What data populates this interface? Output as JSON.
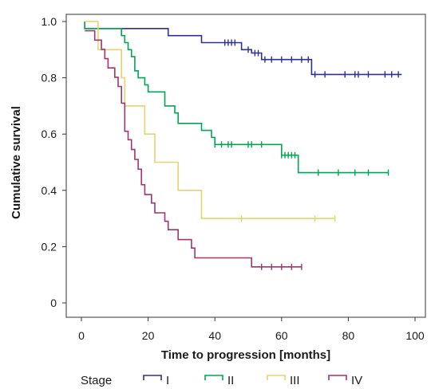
{
  "chart_data": {
    "type": "line",
    "subtype": "kaplan-meier-step",
    "xlabel": "Time to progression [months]",
    "ylabel": "Cumulative survival",
    "xlim": [
      0,
      100
    ],
    "ylim": [
      0,
      1.0
    ],
    "x_ticks": [
      {
        "value": 0,
        "label": "0"
      },
      {
        "value": 20,
        "label": "20"
      },
      {
        "value": 40,
        "label": "40"
      },
      {
        "value": 60,
        "label": "60"
      },
      {
        "value": 80,
        "label": "80"
      },
      {
        "value": 100,
        "label": "100"
      }
    ],
    "y_ticks": [
      {
        "value": 0,
        "label": "0"
      },
      {
        "value": 0.2,
        "label": "0.2"
      },
      {
        "value": 0.4,
        "label": "0.4"
      },
      {
        "value": 0.6,
        "label": "0.6"
      },
      {
        "value": 0.8,
        "label": "0.8"
      },
      {
        "value": 1.0,
        "label": "1.0"
      }
    ],
    "grid": false,
    "legend_title": "Stage",
    "legend_position": "bottom",
    "series": [
      {
        "name": "I",
        "color": "#2e3192",
        "steps": [
          [
            1,
            1.0
          ],
          [
            1,
            0.975
          ],
          [
            26,
            0.975
          ],
          [
            26,
            0.95
          ],
          [
            36,
            0.95
          ],
          [
            36,
            0.925
          ],
          [
            48,
            0.925
          ],
          [
            48,
            0.9
          ],
          [
            51,
            0.9
          ],
          [
            51,
            0.888
          ],
          [
            54,
            0.888
          ],
          [
            54,
            0.865
          ],
          [
            69,
            0.865
          ],
          [
            69,
            0.812
          ],
          [
            96,
            0.812
          ]
        ],
        "censored": [
          [
            43,
            0.925
          ],
          [
            44,
            0.925
          ],
          [
            45,
            0.925
          ],
          [
            46,
            0.925
          ],
          [
            50,
            0.9
          ],
          [
            52,
            0.888
          ],
          [
            53,
            0.888
          ],
          [
            55,
            0.865
          ],
          [
            57,
            0.865
          ],
          [
            60,
            0.865
          ],
          [
            63,
            0.865
          ],
          [
            66,
            0.865
          ],
          [
            68,
            0.865
          ],
          [
            70,
            0.812
          ],
          [
            73,
            0.812
          ],
          [
            79,
            0.812
          ],
          [
            82,
            0.812
          ],
          [
            83,
            0.812
          ],
          [
            86,
            0.812
          ],
          [
            91,
            0.812
          ],
          [
            93,
            0.812
          ],
          [
            95,
            0.812
          ]
        ]
      },
      {
        "name": "II",
        "color": "#00a651",
        "steps": [
          [
            1,
            1.0
          ],
          [
            1,
            0.975
          ],
          [
            12,
            0.975
          ],
          [
            12,
            0.95
          ],
          [
            13,
            0.95
          ],
          [
            13,
            0.925
          ],
          [
            14,
            0.925
          ],
          [
            14,
            0.9
          ],
          [
            15,
            0.9
          ],
          [
            15,
            0.875
          ],
          [
            16,
            0.875
          ],
          [
            16,
            0.825
          ],
          [
            17,
            0.825
          ],
          [
            17,
            0.8
          ],
          [
            19,
            0.8
          ],
          [
            19,
            0.775
          ],
          [
            20,
            0.775
          ],
          [
            20,
            0.75
          ],
          [
            25,
            0.75
          ],
          [
            25,
            0.7
          ],
          [
            28,
            0.7
          ],
          [
            28,
            0.675
          ],
          [
            29,
            0.675
          ],
          [
            29,
            0.638
          ],
          [
            36,
            0.638
          ],
          [
            36,
            0.613
          ],
          [
            39,
            0.613
          ],
          [
            39,
            0.588
          ],
          [
            40,
            0.588
          ],
          [
            40,
            0.563
          ],
          [
            60,
            0.563
          ],
          [
            60,
            0.525
          ],
          [
            65,
            0.525
          ],
          [
            65,
            0.463
          ],
          [
            92,
            0.463
          ]
        ],
        "censored": [
          [
            40,
            0.563
          ],
          [
            42,
            0.563
          ],
          [
            44,
            0.563
          ],
          [
            45,
            0.563
          ],
          [
            50,
            0.563
          ],
          [
            51,
            0.563
          ],
          [
            54,
            0.563
          ],
          [
            60,
            0.525
          ],
          [
            61,
            0.525
          ],
          [
            62,
            0.525
          ],
          [
            63,
            0.525
          ],
          [
            64,
            0.525
          ],
          [
            71,
            0.463
          ],
          [
            77,
            0.463
          ],
          [
            82,
            0.463
          ],
          [
            86,
            0.463
          ],
          [
            92,
            0.463
          ]
        ]
      },
      {
        "name": "III",
        "color": "#e5d36d",
        "steps": [
          [
            1,
            1.0
          ],
          [
            5,
            1.0
          ],
          [
            5,
            0.9
          ],
          [
            12,
            0.9
          ],
          [
            12,
            0.8
          ],
          [
            13,
            0.8
          ],
          [
            13,
            0.7
          ],
          [
            19,
            0.7
          ],
          [
            19,
            0.6
          ],
          [
            22,
            0.6
          ],
          [
            22,
            0.5
          ],
          [
            29,
            0.5
          ],
          [
            29,
            0.4
          ],
          [
            36,
            0.4
          ],
          [
            36,
            0.3
          ],
          [
            76,
            0.3
          ]
        ],
        "censored": [
          [
            48,
            0.3
          ],
          [
            70,
            0.3
          ],
          [
            76,
            0.3
          ]
        ]
      },
      {
        "name": "IV",
        "color": "#a3346f",
        "steps": [
          [
            1,
            0.967
          ],
          [
            4,
            0.967
          ],
          [
            4,
            0.934
          ],
          [
            6,
            0.934
          ],
          [
            6,
            0.901
          ],
          [
            7,
            0.901
          ],
          [
            7,
            0.868
          ],
          [
            8,
            0.868
          ],
          [
            8,
            0.835
          ],
          [
            10,
            0.835
          ],
          [
            10,
            0.802
          ],
          [
            11,
            0.802
          ],
          [
            11,
            0.769
          ],
          [
            12,
            0.769
          ],
          [
            12,
            0.71
          ],
          [
            13,
            0.71
          ],
          [
            13,
            0.61
          ],
          [
            14,
            0.61
          ],
          [
            14,
            0.58
          ],
          [
            15,
            0.58
          ],
          [
            15,
            0.545
          ],
          [
            16,
            0.545
          ],
          [
            16,
            0.51
          ],
          [
            17,
            0.51
          ],
          [
            17,
            0.475
          ],
          [
            18,
            0.475
          ],
          [
            18,
            0.42
          ],
          [
            19,
            0.42
          ],
          [
            19,
            0.385
          ],
          [
            21,
            0.385
          ],
          [
            21,
            0.355
          ],
          [
            22,
            0.355
          ],
          [
            22,
            0.32
          ],
          [
            25,
            0.32
          ],
          [
            25,
            0.29
          ],
          [
            26,
            0.29
          ],
          [
            26,
            0.26
          ],
          [
            29,
            0.26
          ],
          [
            29,
            0.225
          ],
          [
            33,
            0.225
          ],
          [
            33,
            0.195
          ],
          [
            34,
            0.195
          ],
          [
            34,
            0.16
          ],
          [
            51,
            0.16
          ],
          [
            51,
            0.128
          ],
          [
            66,
            0.128
          ]
        ],
        "censored": [
          [
            54,
            0.128
          ],
          [
            57,
            0.128
          ],
          [
            60,
            0.128
          ],
          [
            63,
            0.128
          ],
          [
            66,
            0.128
          ]
        ]
      }
    ]
  }
}
